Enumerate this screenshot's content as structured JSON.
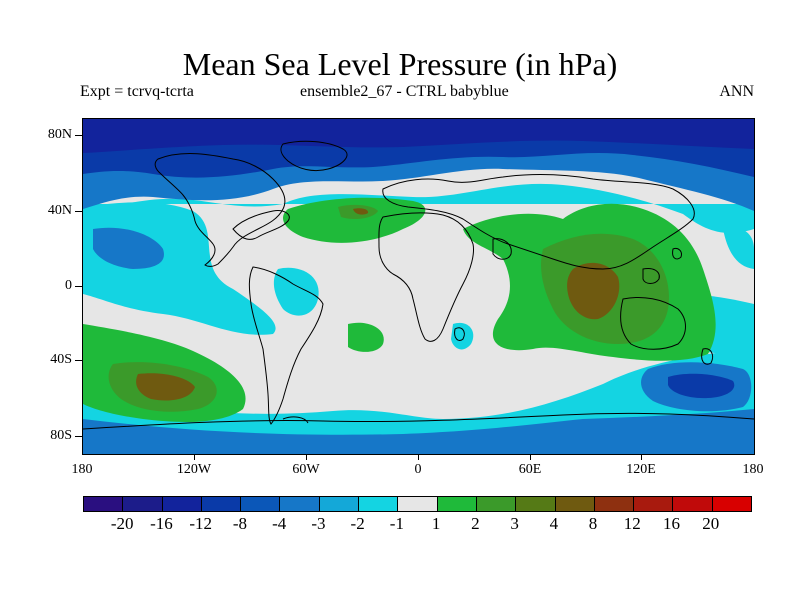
{
  "title": "Mean Sea Level Pressure (in hPa)",
  "subtitle_left": "Expt = tcrvq-tcrta",
  "subtitle_center": "ensemble2_67 - CTRL babyblue",
  "subtitle_right": "ANN",
  "y_axis": {
    "labels": [
      "80N",
      "40N",
      "0",
      "40S",
      "80S"
    ]
  },
  "x_axis": {
    "labels": [
      "180",
      "120W",
      "60W",
      "0",
      "60E",
      "120E",
      "180"
    ]
  },
  "colorbar": {
    "labels": [
      "-20",
      "-16",
      "-12",
      "-8",
      "-4",
      "-3",
      "-2",
      "-1",
      "1",
      "2",
      "3",
      "4",
      "8",
      "12",
      "16",
      "20"
    ],
    "colors": [
      "#2a0f80",
      "#1c1c8a",
      "#12239c",
      "#0a3aa8",
      "#0b57b8",
      "#1677c8",
      "#14a8d8",
      "#14d4e2",
      "#e6e6e6",
      "#1fba3a",
      "#3b9a2a",
      "#557a16",
      "#6f5a10",
      "#8e3010",
      "#a81a0e",
      "#c00a0a",
      "#d80000"
    ]
  }
}
